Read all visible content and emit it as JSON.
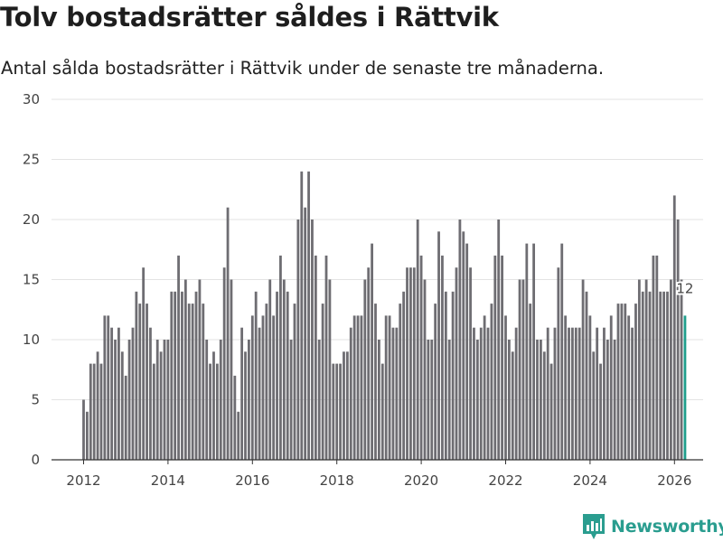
{
  "header": {
    "title": "Tolv bostadsrätter såldes i Rättvik",
    "subtitle": "Antal sålda bostadsrätter i Rättvik under de senaste tre månaderna."
  },
  "brand": {
    "name": "Newsworthy",
    "color": "#2a9d8f"
  },
  "chart_data": {
    "type": "bar",
    "title": "Tolv bostadsrätter såldes i Rättvik",
    "subtitle": "Antal sålda bostadsrätter i Rättvik under de senaste tre månaderna.",
    "xlabel": "",
    "ylabel": "",
    "ylim": [
      0,
      30
    ],
    "yticks": [
      0,
      5,
      10,
      15,
      20,
      25,
      30
    ],
    "xticks": [
      2012,
      2014,
      2016,
      2018,
      2020,
      2022,
      2024,
      2026
    ],
    "x_start": 2012.0,
    "x_step_years": 0.08333,
    "grid": true,
    "bar_color": "#6e6d72",
    "highlight_color": "#1f9e8c",
    "series": [
      {
        "name": "Antal sålda bostadsrätter",
        "values": [
          5,
          4,
          8,
          8,
          9,
          8,
          12,
          12,
          11,
          10,
          11,
          9,
          7,
          10,
          11,
          14,
          13,
          16,
          13,
          11,
          8,
          10,
          9,
          10,
          10,
          14,
          14,
          17,
          14,
          15,
          13,
          13,
          14,
          15,
          13,
          10,
          8,
          9,
          8,
          10,
          16,
          21,
          15,
          7,
          4,
          11,
          9,
          10,
          12,
          14,
          11,
          12,
          13,
          15,
          12,
          14,
          17,
          15,
          14,
          10,
          13,
          20,
          24,
          21,
          24,
          20,
          17,
          10,
          13,
          17,
          15,
          8,
          8,
          8,
          9,
          9,
          11,
          12,
          12,
          12,
          15,
          16,
          18,
          13,
          10,
          8,
          12,
          12,
          11,
          11,
          13,
          14,
          16,
          16,
          16,
          20,
          17,
          15,
          10,
          10,
          13,
          19,
          17,
          14,
          10,
          14,
          16,
          20,
          19,
          18,
          16,
          11,
          10,
          11,
          12,
          11,
          13,
          17,
          20,
          17,
          12,
          10,
          9,
          11,
          15,
          15,
          18,
          13,
          18,
          10,
          10,
          9,
          11,
          8,
          11,
          16,
          18,
          12,
          11,
          11,
          11,
          11,
          15,
          14,
          12,
          9,
          11,
          8,
          11,
          10,
          12,
          10,
          13,
          13,
          13,
          12,
          11,
          13,
          15,
          14,
          15,
          14,
          17,
          17,
          14,
          14,
          14,
          15,
          22,
          20,
          15,
          12
        ]
      }
    ],
    "highlight": {
      "index": 171,
      "label": "12",
      "value": 12
    }
  }
}
